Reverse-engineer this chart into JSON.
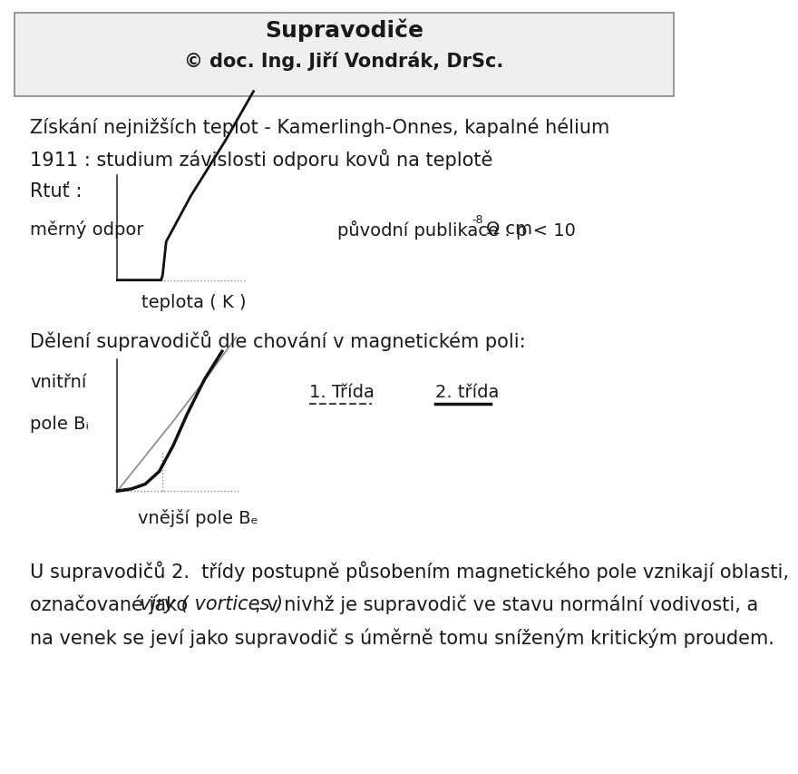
{
  "title": "Supravodiče",
  "subtitle": "© doc. Ing. Jiří Vondrák, DrSc.",
  "bg_color": "#ffffff",
  "header_bg": "#efefef",
  "text_color": "#1a1a1a",
  "line1": "Získání nejnižších teplot - Kamerlingh-Onnes, kapalné hélium",
  "line2": "1911 : studium závislosti odporu kovů na teplotě",
  "line3": "Rtuť :",
  "label_merny": "měrný odpor",
  "label_publikace": "původní publikace : ρ < 10",
  "label_publikace_sup": "-8",
  "label_publikace2": " Ω cm",
  "label_teplota": "teplota ( K )",
  "line4": "Dělení supravodičů dle chování v magnetickém poli:",
  "label_vnitrni": "vnitřní",
  "label_pole_bi": "pole Bᵢ",
  "label_pole_be": "vnější pole Bₑ",
  "label_trida1": "1. Třída",
  "label_trida2": "2. třída",
  "line_bottom1": "U supravodičů 2.  třídy postupně působením magnetického pole vznikají oblasti,",
  "line_bottom2_a": "označované jako ",
  "line_bottom2_b": "víry ( vortices )",
  "line_bottom2_c": ", v nivhž je supravodič ve stavu normální vodivosti, a",
  "line_bottom3": "na venek se jeví jako supravodič s úměrně tomu sníženým kritickým proudem."
}
